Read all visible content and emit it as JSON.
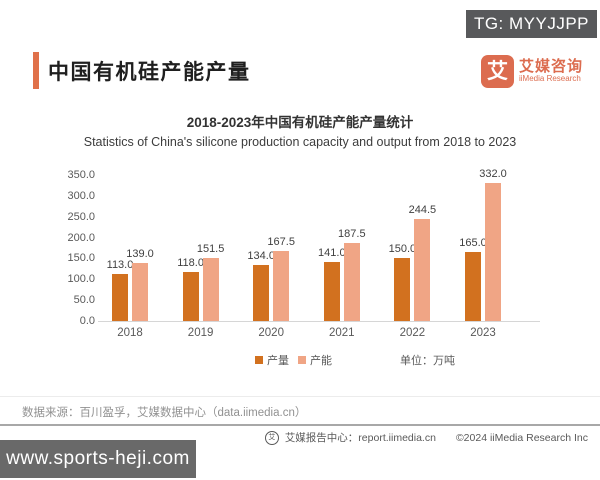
{
  "tg_badge": "TG: MYYJJPP",
  "header": {
    "title": "中国有机硅产能产量"
  },
  "logo": {
    "glyph": "艾",
    "name_cn": "艾媒咨询",
    "name_en": "iiMedia Research"
  },
  "chart_data": {
    "type": "bar",
    "title": "2018-2023年中国有机硅产能产量统计",
    "subtitle": "Statistics of China's silicone production capacity and output from 2018 to 2023",
    "categories": [
      "2018",
      "2019",
      "2020",
      "2021",
      "2022",
      "2023"
    ],
    "series": [
      {
        "name": "产量",
        "color": "#D2711F",
        "values": [
          113.0,
          118.0,
          134.0,
          141.0,
          150.0,
          165.0
        ]
      },
      {
        "name": "产能",
        "color": "#F0A585",
        "values": [
          139.0,
          151.5,
          167.5,
          187.5,
          244.5,
          332.0
        ]
      }
    ],
    "ylim": [
      0,
      350
    ],
    "ytick_step": 50,
    "value_decimals": 1,
    "grid": false,
    "legend_position": "bottom",
    "unit_label": "单位：万吨"
  },
  "source_note": "数据来源：百川盈孚，艾媒数据中心（data.iimedia.cn）",
  "footer": {
    "report_center": "艾媒报告中心：report.iimedia.cn",
    "copyright": "©2024  iiMedia Research Inc"
  },
  "site_watermark": "www.sports-heji.com"
}
